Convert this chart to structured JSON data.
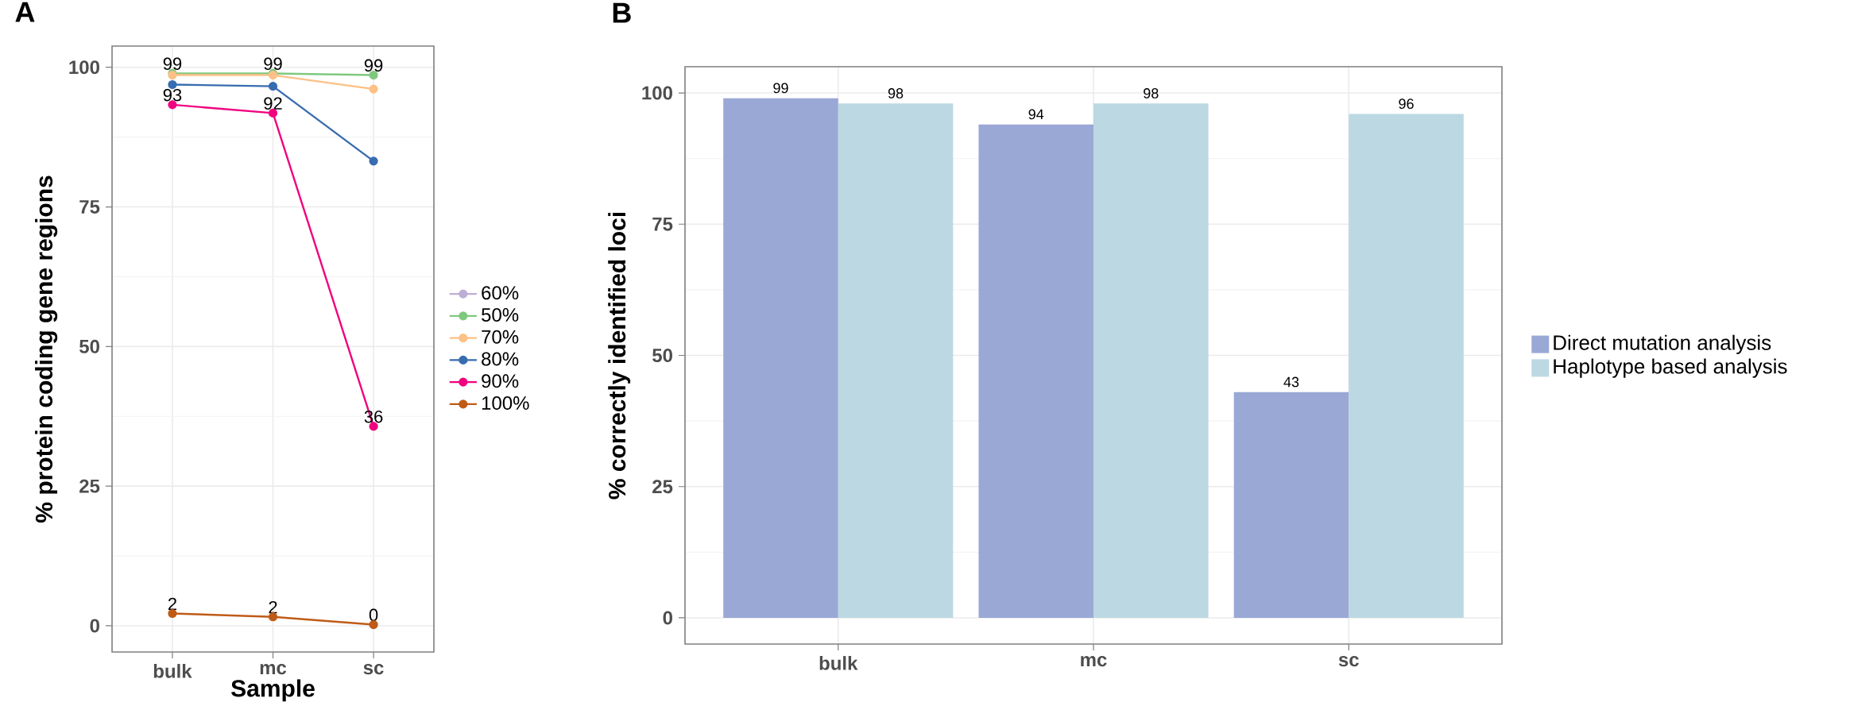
{
  "chart_data": [
    {
      "type": "line",
      "title": "A",
      "xlabel": "Sample",
      "ylabel": "% protein coding gene regions",
      "categories": [
        "bulk",
        "mc",
        "sc"
      ],
      "series": [
        {
          "name": "60%",
          "color": "#beaed4",
          "values": [
            null,
            null,
            null
          ]
        },
        {
          "name": "50%",
          "color": "#7fc97f",
          "values": [
            98.9,
            98.9,
            98.6
          ],
          "value_labels": [
            "99",
            "99",
            "99"
          ]
        },
        {
          "name": "70%",
          "color": "#fdc086",
          "values": [
            98.6,
            98.6,
            96.1
          ]
        },
        {
          "name": "80%",
          "color": "#386cb0",
          "values": [
            96.9,
            96.6,
            83.2
          ]
        },
        {
          "name": "90%",
          "color": "#f0027f",
          "values": [
            93.3,
            91.8,
            35.7
          ],
          "value_labels": [
            "93",
            "92",
            "36"
          ]
        },
        {
          "name": "100%",
          "color": "#bf5b17",
          "values": [
            2.2,
            1.6,
            0.2
          ],
          "value_labels": [
            "2",
            "2",
            "0"
          ]
        }
      ],
      "ylim": [
        -4.7,
        103.8
      ],
      "yticks": [
        0,
        25,
        50,
        75,
        100
      ],
      "grid": true,
      "legend": "right",
      "marker": "circle"
    },
    {
      "type": "bar",
      "title": "B",
      "ylabel": "% correctly identified loci",
      "categories": [
        "bulk",
        "mc",
        "sc"
      ],
      "series": [
        {
          "name": "Direct mutation analysis",
          "color": "#9aa8d6",
          "values": [
            99,
            94,
            43
          ]
        },
        {
          "name": "Haplotype based analysis",
          "color": "#bcd8e3",
          "values": [
            98,
            98,
            96
          ]
        }
      ],
      "ylim": [
        -5,
        105
      ],
      "yticks": [
        0,
        25,
        50,
        75,
        100
      ],
      "grid": true,
      "legend": "right",
      "data_labels": true
    }
  ]
}
